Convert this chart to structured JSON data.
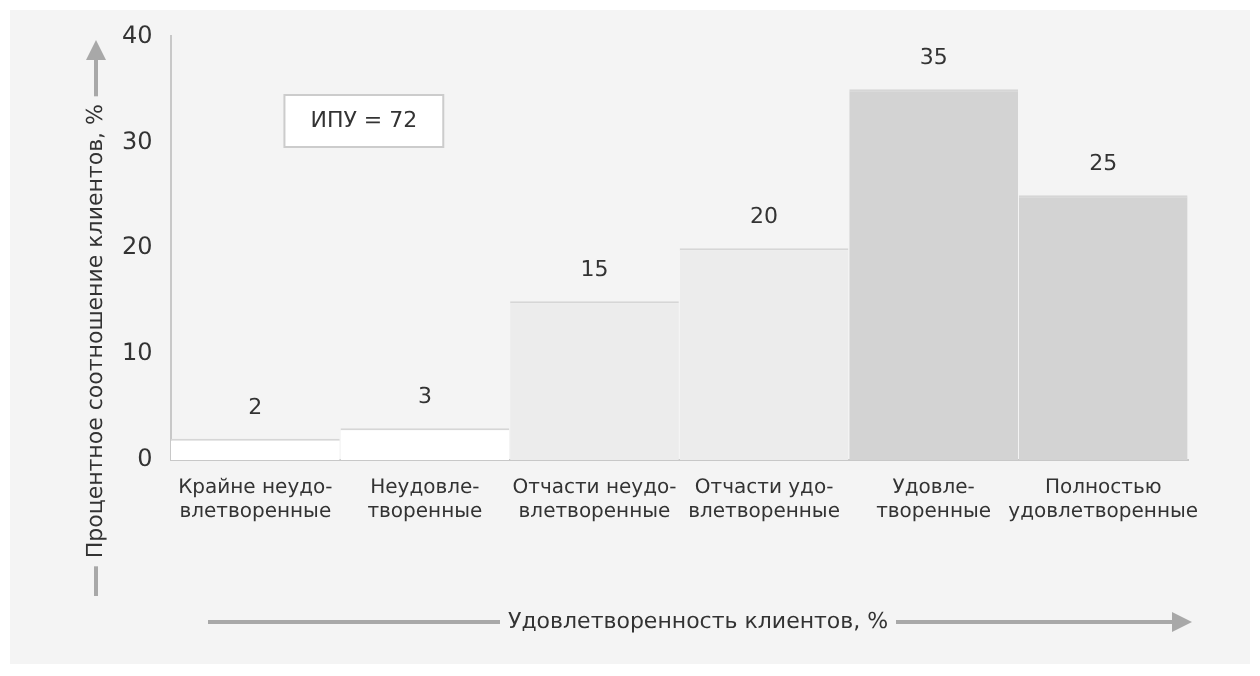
{
  "chart_data": {
    "type": "bar",
    "categories": [
      "Крайне неудо-\nвлетворенные",
      "Неудовле-\nтворенные",
      "Отчасти неудо-\nвлетворенные",
      "Отчасти удо-\nвлетворенные",
      "Удовле-\nтворенные",
      "Полностью\nудовлетворенные"
    ],
    "values": [
      2,
      3,
      15,
      20,
      35,
      25
    ],
    "colors": [
      "#ffffff",
      "#ffffff",
      "#ececec",
      "#ececec",
      "#d3d3d3",
      "#d3d3d3"
    ],
    "ylim": [
      0,
      40
    ],
    "yticks": [
      0,
      10,
      20,
      30,
      40
    ],
    "grid": false,
    "legend": false,
    "data_labels": true,
    "xlabel": "Удовлетворенность клиентов, %",
    "ylabel": "Процентное соотношение клиентов, %",
    "annotations": [
      "ИПУ = 72"
    ]
  }
}
